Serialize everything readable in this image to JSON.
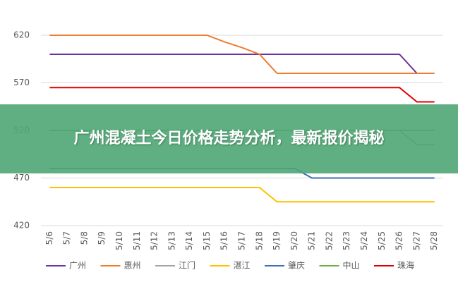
{
  "chart_data": {
    "type": "line",
    "categories": [
      "5/6",
      "5/7",
      "5/8",
      "5/9",
      "5/10",
      "5/11",
      "5/12",
      "5/13",
      "5/14",
      "5/15",
      "5/16",
      "5/17",
      "5/18",
      "5/19",
      "5/20",
      "5/21",
      "5/22",
      "5/23",
      "5/24",
      "5/25",
      "5/26",
      "5/27",
      "5/28"
    ],
    "ylim": [
      420,
      620
    ],
    "yticks": [
      420,
      470,
      520,
      570,
      620
    ],
    "grid": true,
    "series": [
      {
        "name": "广州",
        "color": "#7030a0",
        "values": [
          600,
          600,
          600,
          600,
          600,
          600,
          600,
          600,
          600,
          600,
          600,
          600,
          600,
          600,
          600,
          600,
          600,
          600,
          600,
          600,
          600,
          580,
          580
        ]
      },
      {
        "name": "惠州",
        "color": "#ed7d31",
        "values": [
          620,
          620,
          620,
          620,
          620,
          620,
          620,
          620,
          620,
          620,
          613,
          607,
          600,
          580,
          580,
          580,
          580,
          580,
          580,
          580,
          580,
          580,
          580
        ]
      },
      {
        "name": "江门",
        "color": "#a5a5a5",
        "values": [
          520,
          520,
          520,
          520,
          520,
          520,
          520,
          520,
          520,
          520,
          520,
          520,
          520,
          520,
          520,
          520,
          520,
          520,
          520,
          520,
          520,
          505,
          505
        ]
      },
      {
        "name": "湛江",
        "color": "#ffc000",
        "values": [
          460,
          460,
          460,
          460,
          460,
          460,
          460,
          460,
          460,
          460,
          460,
          460,
          460,
          445,
          445,
          445,
          445,
          445,
          445,
          445,
          445,
          445,
          445
        ]
      },
      {
        "name": "肇庆",
        "color": "#3f6fb0",
        "values": [
          480,
          480,
          480,
          480,
          480,
          480,
          480,
          480,
          480,
          480,
          480,
          480,
          480,
          480,
          480,
          470,
          470,
          470,
          470,
          470,
          470,
          470,
          470
        ]
      },
      {
        "name": "中山",
        "color": "#70ad47",
        "values": [
          520,
          520,
          520,
          520,
          520,
          520,
          520,
          520,
          520,
          520,
          520,
          520,
          520,
          520,
          520,
          520,
          520,
          520,
          520,
          520,
          520,
          520,
          520
        ]
      },
      {
        "name": "珠海",
        "color": "#e00000",
        "values": [
          565,
          565,
          565,
          565,
          565,
          565,
          565,
          565,
          565,
          565,
          565,
          565,
          565,
          565,
          565,
          565,
          565,
          565,
          565,
          565,
          565,
          550,
          550
        ]
      }
    ]
  },
  "banner": {
    "title": "广州混凝土今日价格走势分析，最新报价揭秘"
  }
}
